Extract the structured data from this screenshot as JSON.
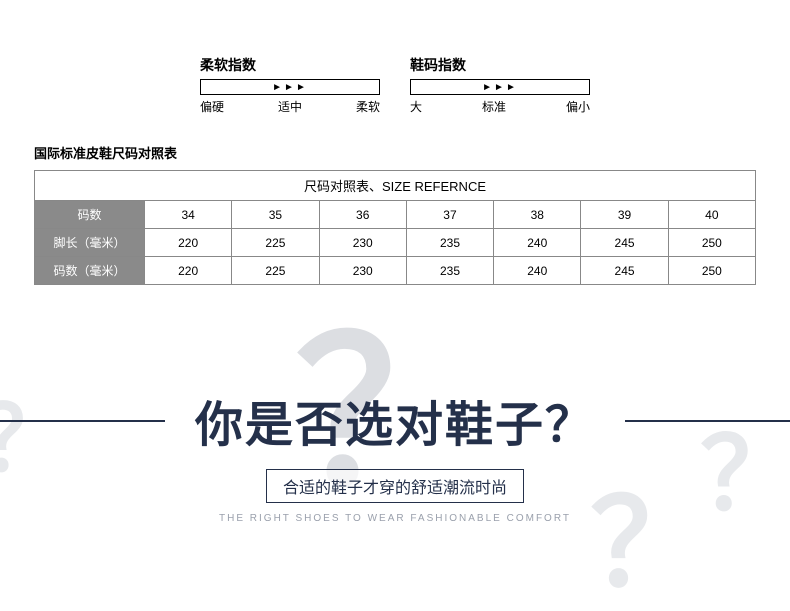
{
  "indicators": [
    {
      "title": "柔软指数",
      "arrows": "►►►",
      "labels": [
        "偏硬",
        "适中",
        "柔软"
      ]
    },
    {
      "title": "鞋码指数",
      "arrows": "►►►",
      "labels": [
        "大",
        "标准",
        "偏小"
      ]
    }
  ],
  "table": {
    "title": "国际标准皮鞋尺码对照表",
    "header": "尺码对照表、SIZE REFERNCE",
    "rows": [
      {
        "label": "码数",
        "cells": [
          "34",
          "35",
          "36",
          "37",
          "38",
          "39",
          "40"
        ]
      },
      {
        "label": "脚长（毫米）",
        "cells": [
          "220",
          "225",
          "230",
          "235",
          "240",
          "245",
          "250"
        ]
      },
      {
        "label": "码数（毫米）",
        "cells": [
          "220",
          "225",
          "230",
          "235",
          "240",
          "245",
          "250"
        ]
      }
    ]
  },
  "hero": {
    "title": "你是否选对鞋子？",
    "subtitle": "合适的鞋子才穿的舒适潮流时尚",
    "subtitle_en": "THE RIGHT SHOES TO WEAR FASHIONABLE COMFORT",
    "qmark": "？"
  },
  "colors": {
    "hero_text": "#24304a",
    "qmark_bg": "#dcdee2",
    "rowhead_bg": "#8a8a8a"
  }
}
